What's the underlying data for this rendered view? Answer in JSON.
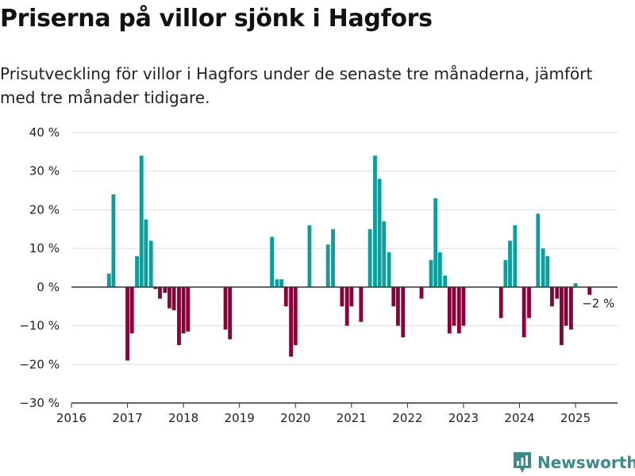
{
  "title": "Priserna på villor sjönk i Hagfors",
  "subtitle": "Prisutveckling för villor i Hagfors under de senaste tre månaderna, jämfört med tre månader tidigare.",
  "brand": {
    "name": "Newsworthy",
    "icon": "newsworthy-logo-icon"
  },
  "colors": {
    "positive": "#0c9e9a",
    "negative": "#8e0038",
    "grid": "#dddddd",
    "axis": "#333333"
  },
  "chart_data": {
    "type": "bar",
    "xlabel": "",
    "ylabel": "",
    "xlim": [
      2016.0,
      2025.75
    ],
    "ylim": [
      -30,
      40
    ],
    "y_ticks": [
      {
        "value": 40,
        "label": "40 %"
      },
      {
        "value": 30,
        "label": "30 %"
      },
      {
        "value": 20,
        "label": "20 %"
      },
      {
        "value": 10,
        "label": "10 %"
      },
      {
        "value": 0,
        "label": "0 %"
      },
      {
        "value": -10,
        "label": "−10 %"
      },
      {
        "value": -20,
        "label": "−20 %"
      },
      {
        "value": -30,
        "label": "−30 %"
      }
    ],
    "x_ticks": [
      {
        "value": 2016,
        "label": "2016"
      },
      {
        "value": 2017,
        "label": "2017"
      },
      {
        "value": 2018,
        "label": "2018"
      },
      {
        "value": 2019,
        "label": "2019"
      },
      {
        "value": 2020,
        "label": "2020"
      },
      {
        "value": 2021,
        "label": "2021"
      },
      {
        "value": 2022,
        "label": "2022"
      },
      {
        "value": 2023,
        "label": "2023"
      },
      {
        "value": 2024,
        "label": "2024"
      },
      {
        "value": 2025,
        "label": "2025"
      }
    ],
    "grid": true,
    "annotation": {
      "x": 2025.2,
      "y": -2,
      "label": "−2 %"
    },
    "x": [
      2016.67,
      2016.75,
      2017.0,
      2017.08,
      2017.17,
      2017.25,
      2017.33,
      2017.42,
      2017.5,
      2017.58,
      2017.67,
      2017.75,
      2017.83,
      2017.92,
      2018.0,
      2018.08,
      2018.75,
      2018.83,
      2019.58,
      2019.67,
      2019.75,
      2019.83,
      2019.92,
      2020.0,
      2020.25,
      2020.58,
      2020.67,
      2020.83,
      2020.92,
      2021.0,
      2021.17,
      2021.33,
      2021.42,
      2021.5,
      2021.58,
      2021.67,
      2021.75,
      2021.83,
      2021.92,
      2022.25,
      2022.42,
      2022.5,
      2022.58,
      2022.67,
      2022.75,
      2022.83,
      2022.92,
      2023.0,
      2023.67,
      2023.75,
      2023.83,
      2023.92,
      2024.08,
      2024.17,
      2024.33,
      2024.42,
      2024.5,
      2024.58,
      2024.67,
      2024.75,
      2024.83,
      2024.92,
      2025.0,
      2025.25
    ],
    "values": [
      3.5,
      24,
      -19,
      -12,
      8,
      34,
      17.5,
      12,
      -0.5,
      -3,
      -1.5,
      -5.5,
      -6,
      -15,
      -12,
      -11.5,
      -11,
      -13.5,
      13,
      2,
      2,
      -5,
      -18,
      -15,
      16,
      11,
      15,
      -5,
      -10,
      -5,
      -9,
      15,
      34,
      28,
      17,
      9,
      -5,
      -10,
      -13,
      -3,
      7,
      23,
      9,
      3,
      -12,
      -10,
      -12,
      -10,
      -8,
      7,
      12,
      16,
      -13,
      -8,
      19,
      10,
      8,
      -5,
      -3,
      -15,
      -10,
      -11,
      1,
      -2
    ]
  }
}
